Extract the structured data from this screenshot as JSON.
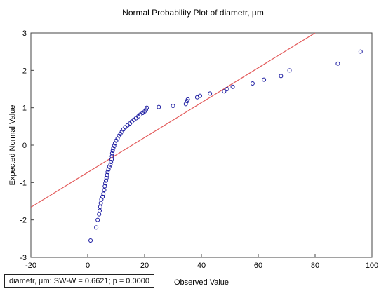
{
  "chart_data": {
    "type": "scatter",
    "title": "Normal Probability Plot of diametr, µm",
    "xlabel": "Observed Value",
    "ylabel": "Expected Normal Value",
    "xlim": [
      -20,
      100
    ],
    "ylim": [
      -3,
      3
    ],
    "xticks": [
      -20,
      0,
      20,
      40,
      60,
      80,
      100
    ],
    "yticks": [
      -3,
      -2,
      -1,
      0,
      1,
      2,
      3
    ],
    "grid": false,
    "series": [
      {
        "marker": "open-circle",
        "color": "#1a1aa0",
        "points": [
          [
            1.0,
            -2.55
          ],
          [
            3.0,
            -2.2
          ],
          [
            3.5,
            -2.0
          ],
          [
            4.0,
            -1.85
          ],
          [
            4.2,
            -1.75
          ],
          [
            4.4,
            -1.65
          ],
          [
            4.6,
            -1.55
          ],
          [
            4.8,
            -1.45
          ],
          [
            5.2,
            -1.38
          ],
          [
            5.5,
            -1.3
          ],
          [
            5.8,
            -1.2
          ],
          [
            6.0,
            -1.1
          ],
          [
            6.2,
            -1.02
          ],
          [
            6.4,
            -0.95
          ],
          [
            6.6,
            -0.88
          ],
          [
            6.8,
            -0.8
          ],
          [
            7.0,
            -0.72
          ],
          [
            7.3,
            -0.65
          ],
          [
            7.6,
            -0.58
          ],
          [
            8.0,
            -0.52
          ],
          [
            8.2,
            -0.45
          ],
          [
            8.4,
            -0.38
          ],
          [
            8.5,
            -0.3
          ],
          [
            8.6,
            -0.22
          ],
          [
            8.8,
            -0.15
          ],
          [
            9.0,
            -0.08
          ],
          [
            9.3,
            -0.02
          ],
          [
            9.6,
            0.05
          ],
          [
            10.0,
            0.12
          ],
          [
            10.5,
            0.18
          ],
          [
            11.0,
            0.25
          ],
          [
            11.5,
            0.3
          ],
          [
            12.0,
            0.36
          ],
          [
            12.5,
            0.42
          ],
          [
            13.2,
            0.48
          ],
          [
            14.0,
            0.53
          ],
          [
            14.8,
            0.58
          ],
          [
            15.5,
            0.63
          ],
          [
            16.2,
            0.68
          ],
          [
            17.0,
            0.72
          ],
          [
            17.8,
            0.77
          ],
          [
            18.5,
            0.82
          ],
          [
            19.3,
            0.86
          ],
          [
            20.0,
            0.9
          ],
          [
            20.5,
            0.95
          ],
          [
            20.8,
            1.0
          ],
          [
            25.0,
            1.02
          ],
          [
            30.0,
            1.05
          ],
          [
            34.5,
            1.1
          ],
          [
            35.0,
            1.18
          ],
          [
            35.2,
            1.22
          ],
          [
            38.5,
            1.28
          ],
          [
            39.5,
            1.32
          ],
          [
            43.0,
            1.38
          ],
          [
            48.0,
            1.44
          ],
          [
            49.0,
            1.5
          ],
          [
            51.0,
            1.56
          ],
          [
            58.0,
            1.65
          ],
          [
            62.0,
            1.75
          ],
          [
            68.0,
            1.85
          ],
          [
            71.0,
            2.0
          ],
          [
            88.0,
            2.18
          ],
          [
            96.0,
            2.5
          ]
        ]
      }
    ],
    "reference_line": {
      "color": "#e35a5a",
      "points": [
        [
          -20,
          -1.66
        ],
        [
          80,
          3.0
        ]
      ]
    },
    "stats_text": "diametr, µm:  SW-W = 0.6621; p = 0.0000"
  }
}
